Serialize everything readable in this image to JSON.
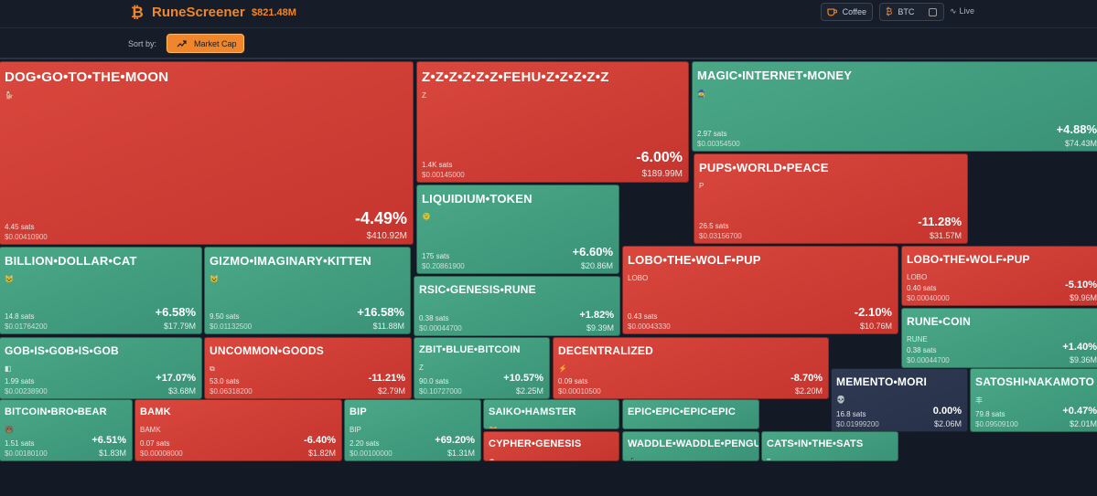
{
  "header": {
    "brand_icon": "₿",
    "brand_name": "RuneScreener",
    "total_cap": "$821.48M",
    "coffee_icon": "coffee-icon",
    "coffee_label": "Coffee",
    "btc_icon": "₿",
    "btc_label": "BTC",
    "live_label": "Live"
  },
  "sort": {
    "label": "Sort by:",
    "button_label": "Market Cap"
  },
  "colors": {
    "accent": "#f0862b",
    "up": "#3f9b7d",
    "down": "#d0403a",
    "neutral": "#2c364c"
  },
  "tiles": [
    {
      "id": "dog",
      "name": "DOG•GO•TO•THE•MOON",
      "symbol": "🐕",
      "sats": "4.45 sats",
      "price": "$0.00410900",
      "change": "-4.49%",
      "mcap": "$410.92M",
      "trend": "down"
    },
    {
      "id": "fehu",
      "name": "Z•Z•Z•Z•Z•Z•FEHU•Z•Z•Z•Z•Z",
      "symbol": "Z",
      "sats": "1.4K sats",
      "price": "$0.00145000",
      "change": "-6.00%",
      "mcap": "$189.99M",
      "trend": "down"
    },
    {
      "id": "mim",
      "name": "MAGIC•INTERNET•MONEY",
      "symbol": "🧙",
      "sats": "2.97 sats",
      "price": "$0.00354500",
      "change": "+4.88%",
      "mcap": "$74.43M",
      "trend": "up"
    },
    {
      "id": "pups",
      "name": "PUPS•WORLD•PEACE",
      "symbol": "P",
      "sats": "26.5 sats",
      "price": "$0.03156700",
      "change": "-11.28%",
      "mcap": "$31.57M",
      "trend": "down"
    },
    {
      "id": "liquidium",
      "name": "LIQUIDIUM•TOKEN",
      "symbol": "🫠",
      "sats": "175 sats",
      "price": "$0.20861900",
      "change": "+6.60%",
      "mcap": "$20.86M",
      "trend": "up"
    },
    {
      "id": "bdc",
      "name": "BILLION•DOLLAR•CAT",
      "symbol": "🐱",
      "sats": "14.8 sats",
      "price": "$0.01764200",
      "change": "+6.58%",
      "mcap": "$17.79M",
      "trend": "up"
    },
    {
      "id": "gizmo",
      "name": "GIZMO•IMAGINARY•KITTEN",
      "symbol": "😺",
      "sats": "9.50 sats",
      "price": "$0.01132500",
      "change": "+16.58%",
      "mcap": "$11.88M",
      "trend": "up"
    },
    {
      "id": "lobo1",
      "name": "LOBO•THE•WOLF•PUP",
      "symbol": "LOBO",
      "sats": "0.43 sats",
      "price": "$0.00043330",
      "change": "-2.10%",
      "mcap": "$10.76M",
      "trend": "down"
    },
    {
      "id": "lobo2",
      "name": "LOBO•THE•WOLF•PUP",
      "symbol": "LOBO",
      "sats": "0.40 sats",
      "price": "$0.00040000",
      "change": "-5.10%",
      "mcap": "$9.96M",
      "trend": "down"
    },
    {
      "id": "rsic",
      "name": "RSIC•GENESIS•RUNE",
      "symbol": "",
      "sats": "0.38 sats",
      "price": "$0.00044700",
      "change": "+1.82%",
      "mcap": "$9.39M",
      "trend": "up"
    },
    {
      "id": "runecoin",
      "name": "RUNE•COIN",
      "symbol": "RUNE",
      "sats": "0.38 sats",
      "price": "$0.00044700",
      "change": "+1.40%",
      "mcap": "$9.36M",
      "trend": "up"
    },
    {
      "id": "gob",
      "name": "GOB•IS•GOB•IS•GOB",
      "symbol": "◧",
      "sats": "1.99 sats",
      "price": "$0.00238900",
      "change": "+17.07%",
      "mcap": "$3.68M",
      "trend": "up"
    },
    {
      "id": "uncommon",
      "name": "UNCOMMON•GOODS",
      "symbol": "⧉",
      "sats": "53.0 sats",
      "price": "$0.06318200",
      "change": "-11.21%",
      "mcap": "$2.79M",
      "trend": "down"
    },
    {
      "id": "zbit",
      "name": "ZBIT•BLUE•BITCOIN",
      "symbol": "Z",
      "sats": "90.0 sats",
      "price": "$0.10727000",
      "change": "+10.57%",
      "mcap": "$2.25M",
      "trend": "up"
    },
    {
      "id": "decentralized",
      "name": "DECENTRALIZED",
      "symbol": "⚡",
      "sats": "0.09 sats",
      "price": "$0.00010500",
      "change": "-8.70%",
      "mcap": "$2.20M",
      "trend": "down"
    },
    {
      "id": "memento",
      "name": "MEMENTO•MORI",
      "symbol": "💀",
      "sats": "16.8 sats",
      "price": "$0.01999200",
      "change": "0.00%",
      "mcap": "$2.06M",
      "trend": "flat"
    },
    {
      "id": "satoshi",
      "name": "SATOSHI•NAKAMOTO",
      "symbol": "丰",
      "sats": "79.8 sats",
      "price": "$0.09509100",
      "change": "+0.47%",
      "mcap": "$2.01M",
      "trend": "up"
    },
    {
      "id": "bitcoinbro",
      "name": "BITCOIN•BRO•BEAR",
      "symbol": "🐻",
      "sats": "1.51 sats",
      "price": "$0.00180100",
      "change": "+6.51%",
      "mcap": "$1.83M",
      "trend": "up"
    },
    {
      "id": "bamk",
      "name": "BAMK",
      "symbol": "BAMK",
      "sats": "0.07 sats",
      "price": "$0.00008000",
      "change": "-6.40%",
      "mcap": "$1.82M",
      "trend": "down"
    },
    {
      "id": "bip",
      "name": "BIP",
      "symbol": "BIP",
      "sats": "2.20 sats",
      "price": "$0.00100000",
      "change": "+69.20%",
      "mcap": "$1.31M",
      "trend": "up"
    },
    {
      "id": "saiko",
      "name": "SAIKO•HAMSTER",
      "symbol": "🐹",
      "sats": "",
      "price": "",
      "change": "",
      "mcap": "",
      "trend": "up"
    },
    {
      "id": "epic",
      "name": "EPIC•EPIC•EPIC•EPIC",
      "symbol": "",
      "sats": "",
      "price": "",
      "change": "",
      "mcap": "",
      "trend": "up"
    },
    {
      "id": "cypher",
      "name": "CYPHER•GENESIS",
      "symbol": "☗",
      "sats": "",
      "price": "",
      "change": "",
      "mcap": "",
      "trend": "down"
    },
    {
      "id": "waddle",
      "name": "WADDLE•WADDLE•PENGU",
      "symbol": "🐧",
      "sats": "",
      "price": "",
      "change": "",
      "mcap": "",
      "trend": "up"
    },
    {
      "id": "cats",
      "name": "CATS•IN•THE•SATS",
      "symbol": "$",
      "sats": "",
      "price": "",
      "change": "",
      "mcap": "",
      "trend": "up"
    }
  ]
}
